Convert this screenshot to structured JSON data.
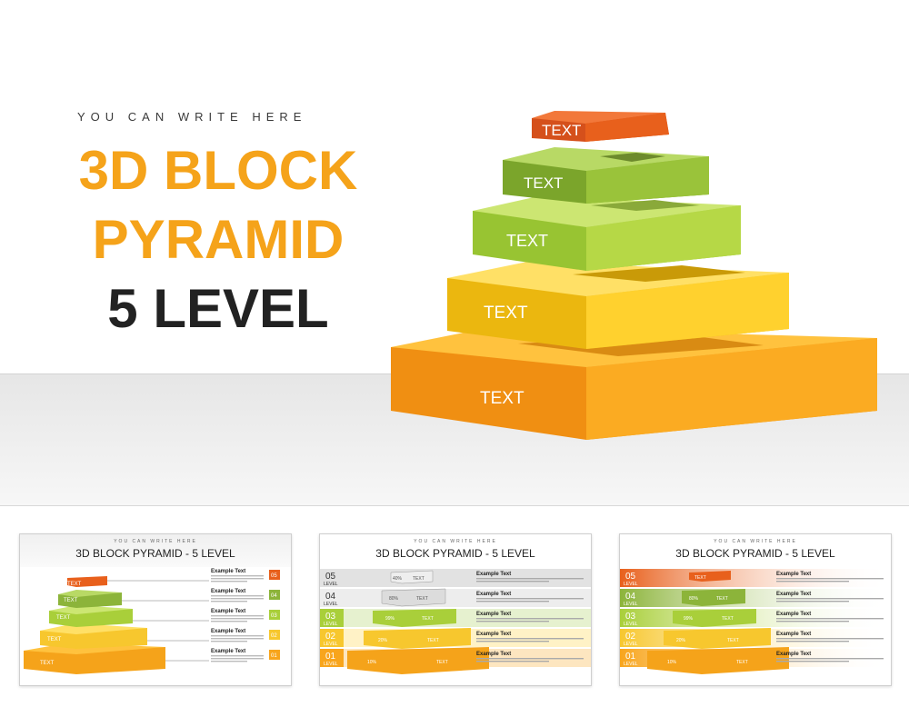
{
  "hero": {
    "subtitle": "YOU CAN WRITE HERE",
    "title_line1": "3D BLOCK",
    "title_line2": "PYRAMID",
    "title_line3": "5 LEVEL",
    "block_labels": [
      "TEXT",
      "TEXT",
      "TEXT",
      "TEXT",
      "TEXT"
    ]
  },
  "thumbnails": [
    {
      "subtitle": "YOU CAN WRITE HERE",
      "title": "3D BLOCK PYRAMID - 5 LEVEL",
      "block_labels": [
        "TEXT",
        "TEXT",
        "TEXT",
        "TEXT",
        "TEXT"
      ],
      "items": [
        {
          "heading": "Example Text",
          "badge": "05"
        },
        {
          "heading": "Example Text",
          "badge": "04"
        },
        {
          "heading": "Example Text",
          "badge": "03"
        },
        {
          "heading": "Example Text",
          "badge": "02"
        },
        {
          "heading": "Example Text",
          "badge": "01"
        }
      ]
    },
    {
      "subtitle": "YOU CAN WRITE HERE",
      "title": "3D BLOCK PYRAMID - 5 LEVEL",
      "levels": [
        {
          "num": "05",
          "word": "LEVEL",
          "pct": "40%",
          "label": "TEXT"
        },
        {
          "num": "04",
          "word": "LEVEL",
          "pct": "80%",
          "label": "TEXT"
        },
        {
          "num": "03",
          "word": "LEVEL",
          "pct": "99%",
          "label": "TEXT"
        },
        {
          "num": "02",
          "word": "LEVEL",
          "pct": "20%",
          "label": "TEXT"
        },
        {
          "num": "01",
          "word": "LEVEL",
          "pct": "10%",
          "label": "TEXT"
        }
      ],
      "headings": [
        "Example Text",
        "Example Text",
        "Example Text",
        "Example Text",
        "Example Text"
      ]
    },
    {
      "subtitle": "YOU CAN WRITE HERE",
      "title": "3D BLOCK PYRAMID - 5 LEVEL",
      "levels": [
        {
          "num": "05",
          "word": "LEVEL",
          "pct": "",
          "label": "TEXT"
        },
        {
          "num": "04",
          "word": "LEVEL",
          "pct": "80%",
          "label": "TEXT"
        },
        {
          "num": "03",
          "word": "LEVEL",
          "pct": "99%",
          "label": "TEXT"
        },
        {
          "num": "02",
          "word": "LEVEL",
          "pct": "20%",
          "label": "TEXT"
        },
        {
          "num": "01",
          "word": "LEVEL",
          "pct": "10%",
          "label": "TEXT"
        }
      ],
      "headings": [
        "Example Text",
        "Example Text",
        "Example Text",
        "Example Text",
        "Example Text"
      ]
    }
  ],
  "colors": {
    "orange_title": "#f5a31a",
    "level5": "#e8601c",
    "level4": "#8cb43a",
    "level3": "#a9cf3a",
    "level2": "#f7c72e",
    "level1": "#f8a51c"
  }
}
